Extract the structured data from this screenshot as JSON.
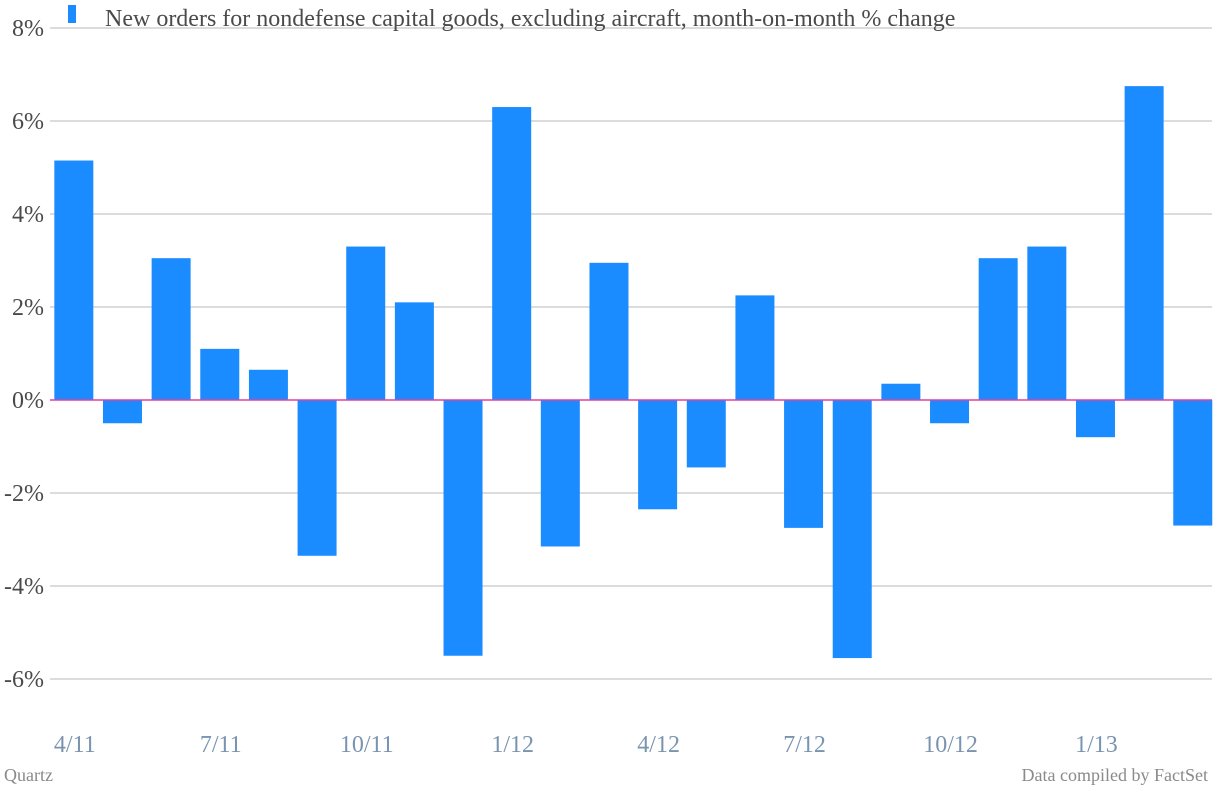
{
  "chart_data": {
    "type": "bar",
    "series": [
      {
        "name": "New orders for nondefense capital goods, excluding aircraft, month-on-month % change",
        "color": "#1a8cff",
        "values": [
          5.15,
          -0.5,
          3.05,
          1.1,
          0.65,
          -3.35,
          3.3,
          2.1,
          -5.5,
          6.3,
          -3.15,
          2.95,
          -2.35,
          -1.45,
          2.25,
          -2.75,
          -5.55,
          0.35,
          -0.5,
          3.05,
          3.3,
          -0.8,
          6.75,
          -2.7
        ]
      }
    ],
    "x_tick_labels": [
      {
        "index": 0,
        "label": "4/11"
      },
      {
        "index": 3,
        "label": "7/11"
      },
      {
        "index": 6,
        "label": "10/11"
      },
      {
        "index": 9,
        "label": "1/12"
      },
      {
        "index": 12,
        "label": "4/12"
      },
      {
        "index": 15,
        "label": "7/12"
      },
      {
        "index": 18,
        "label": "10/12"
      },
      {
        "index": 21,
        "label": "1/13"
      }
    ],
    "y_ticks": [
      {
        "value": 8,
        "label": "8%"
      },
      {
        "value": 6,
        "label": "6%"
      },
      {
        "value": 4,
        "label": "4%"
      },
      {
        "value": 2,
        "label": "2%"
      },
      {
        "value": 0,
        "label": "0%"
      },
      {
        "value": -2,
        "label": "-2%"
      },
      {
        "value": -4,
        "label": "-4%"
      },
      {
        "value": -6,
        "label": "-6%"
      }
    ],
    "ylim": [
      -7,
      8
    ],
    "grid": true,
    "zero_line_color": "#e040a0",
    "grid_color": "#b8b8b8",
    "legend_position": "top-left"
  },
  "footer": {
    "source_left": "Quartz",
    "source_right": "Data compiled by FactSet"
  }
}
